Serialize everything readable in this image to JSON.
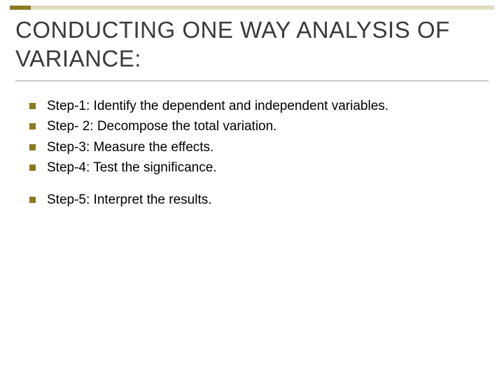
{
  "colors": {
    "accent_dark": "#8a7a1f",
    "accent_light": "#e2ddc0",
    "title_text": "#3a3a3a",
    "title_underline": "#9b9b9b",
    "bullet_marker": "#8a7a1f",
    "body_text": "#000000",
    "background": "#ffffff"
  },
  "typography": {
    "title_fontsize": 33,
    "body_fontsize": 19,
    "font_family": "Arial"
  },
  "title": "CONDUCTING ONE WAY ANALYSIS OF VARIANCE:",
  "groups": [
    {
      "items": [
        "Step-1: Identify the dependent and independent variables.",
        "Step- 2: Decompose the total variation.",
        "Step-3: Measure the effects.",
        "Step-4: Test the significance."
      ]
    },
    {
      "items": [
        "Step-5: Interpret the results."
      ]
    }
  ]
}
